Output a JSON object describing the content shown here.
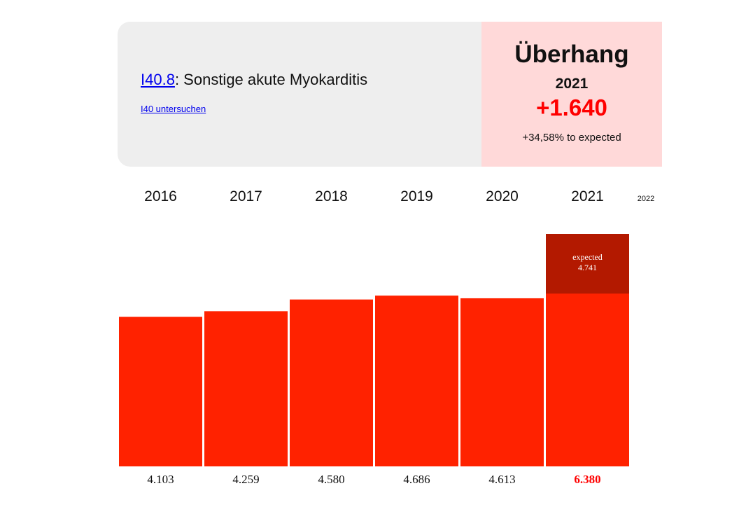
{
  "header": {
    "code": "I40.8",
    "separator": ": ",
    "description": "Sonstige akute Myokarditis",
    "parent_link": "I40 untersuchen"
  },
  "overhang": {
    "title": "Überhang",
    "year": "2021",
    "value": "+1.640",
    "percent_text": "+34,58% to expected"
  },
  "colors": {
    "bar": "#ff2200",
    "expected_bar": "#b31900",
    "highlight_text": "#ff0000",
    "card_bg": "#eeeeee",
    "overhang_bg": "#ffd9d9"
  },
  "chart_data": {
    "type": "bar",
    "categories": [
      "2016",
      "2017",
      "2018",
      "2019",
      "2020",
      "2021"
    ],
    "extra_year_label": "2022",
    "values": [
      4103,
      4259,
      4580,
      4686,
      4613,
      6380
    ],
    "value_labels": [
      "4.103",
      "4.259",
      "4.580",
      "4.686",
      "4.613",
      "6.380"
    ],
    "expected": {
      "category": "2021",
      "label": "expected",
      "value": 4741,
      "value_label": "4.741"
    },
    "highlight_index": 5
  }
}
